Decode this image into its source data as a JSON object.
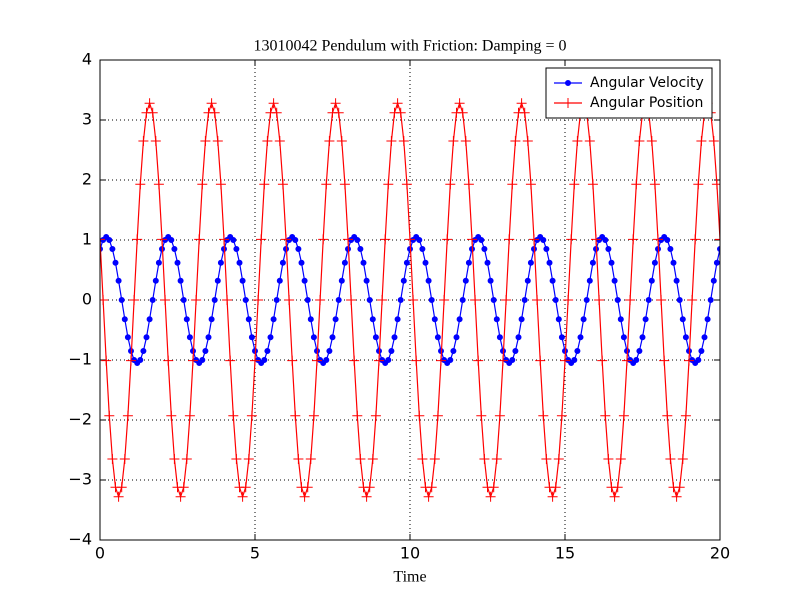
{
  "chart_data": {
    "type": "line",
    "title": "13010042 Pendulum with Friction: Damping = 0",
    "x_label": "Time",
    "xlim": [
      0,
      20
    ],
    "xticks": [
      0,
      5,
      10,
      15,
      20
    ],
    "ylim": [
      -4,
      4
    ],
    "yticks": [
      {
        "value": -4,
        "label": "−4"
      },
      {
        "value": -3,
        "label": "−3"
      },
      {
        "value": -2,
        "label": "−2"
      },
      {
        "value": -1,
        "label": "−1"
      },
      0,
      1,
      2,
      3,
      4
    ],
    "grid": true,
    "legend": "upper right",
    "x": [
      0,
      0.1,
      0.2,
      0.3,
      0.4,
      0.5,
      0.6,
      0.7,
      0.8,
      0.9,
      1,
      1.1,
      1.2,
      1.3,
      1.4,
      1.5,
      1.6,
      1.7,
      1.8,
      1.9,
      2,
      2.1,
      2.2,
      2.3,
      2.4,
      2.5,
      2.6,
      2.7,
      2.8,
      2.9,
      3,
      3.1,
      3.2,
      3.3,
      3.4,
      3.5,
      3.6,
      3.7,
      3.8,
      3.9,
      4,
      4.1,
      4.2,
      4.3,
      4.4,
      4.5,
      4.6,
      4.7,
      4.8,
      4.9,
      5,
      5.1,
      5.2,
      5.3,
      5.4,
      5.5,
      5.6,
      5.7,
      5.8,
      5.9,
      6,
      6.1,
      6.2,
      6.3,
      6.4,
      6.5,
      6.6,
      6.7,
      6.8,
      6.9,
      7,
      7.1,
      7.2,
      7.3,
      7.4,
      7.5,
      7.6,
      7.7,
      7.8,
      7.9,
      8,
      8.1,
      8.2,
      8.3,
      8.4,
      8.5,
      8.6,
      8.7,
      8.8,
      8.9,
      9,
      9.1,
      9.2,
      9.3,
      9.4,
      9.5,
      9.6,
      9.7,
      9.8,
      9.9,
      10,
      10.1,
      10.2,
      10.3,
      10.4,
      10.5,
      10.6,
      10.7,
      10.8,
      10.9,
      11,
      11.1,
      11.2,
      11.3,
      11.4,
      11.5,
      11.6,
      11.7,
      11.8,
      11.9,
      12,
      12.1,
      12.2,
      12.3,
      12.4,
      12.5,
      12.6,
      12.7,
      12.8,
      12.9,
      13,
      13.1,
      13.2,
      13.3,
      13.4,
      13.5,
      13.6,
      13.7,
      13.8,
      13.9,
      14,
      14.1,
      14.2,
      14.3,
      14.4,
      14.5,
      14.6,
      14.7,
      14.8,
      14.9,
      15,
      15.1,
      15.2,
      15.3,
      15.4,
      15.5,
      15.6,
      15.7,
      15.8,
      15.9,
      16,
      16.1,
      16.2,
      16.3,
      16.4,
      16.5,
      16.6,
      16.7,
      16.8,
      16.9,
      17,
      17.1,
      17.2,
      17.3,
      17.4,
      17.5,
      17.6,
      17.7,
      17.8,
      17.9,
      18,
      18.1,
      18.2,
      18.3,
      18.4,
      18.5,
      18.6,
      18.7,
      18.8,
      18.9,
      19,
      19.1,
      19.2,
      19.3,
      19.4,
      19.5,
      19.6,
      19.7,
      19.8,
      19.9,
      20
    ],
    "series": [
      {
        "name": "Angular Velocity",
        "color": "#0000ff",
        "marker": "dot",
        "values": [
          0.85,
          1.0,
          1.05,
          1.0,
          0.85,
          0.62,
          0.32,
          0,
          -0.32,
          -0.62,
          -0.85,
          -1.0,
          -1.05,
          -1.0,
          -0.85,
          -0.62,
          -0.32,
          0,
          0.32,
          0.62,
          0.85,
          1.0,
          1.05,
          1.0,
          0.85,
          0.62,
          0.32,
          0,
          -0.32,
          -0.62,
          -0.85,
          -1.0,
          -1.05,
          -1.0,
          -0.85,
          -0.62,
          -0.32,
          0,
          0.32,
          0.62,
          0.85,
          1.0,
          1.05,
          1.0,
          0.85,
          0.62,
          0.32,
          0,
          -0.32,
          -0.62,
          -0.85,
          -1.0,
          -1.05,
          -1.0,
          -0.85,
          -0.62,
          -0.32,
          0,
          0.32,
          0.62,
          0.85,
          1.0,
          1.05,
          1.0,
          0.85,
          0.62,
          0.32,
          0,
          -0.32,
          -0.62,
          -0.85,
          -1.0,
          -1.05,
          -1.0,
          -0.85,
          -0.62,
          -0.32,
          0,
          0.32,
          0.62,
          0.85,
          1.0,
          1.05,
          1.0,
          0.85,
          0.62,
          0.32,
          0,
          -0.32,
          -0.62,
          -0.85,
          -1.0,
          -1.05,
          -1.0,
          -0.85,
          -0.62,
          -0.32,
          0,
          0.32,
          0.62,
          0.85,
          1.0,
          1.05,
          1.0,
          0.85,
          0.62,
          0.32,
          0,
          -0.32,
          -0.62,
          -0.85,
          -1.0,
          -1.05,
          -1.0,
          -0.85,
          -0.62,
          -0.32,
          0,
          0.32,
          0.62,
          0.85,
          1.0,
          1.05,
          1.0,
          0.85,
          0.62,
          0.32,
          0,
          -0.32,
          -0.62,
          -0.85,
          -1.0,
          -1.05,
          -1.0,
          -0.85,
          -0.62,
          -0.32,
          0,
          0.32,
          0.62,
          0.85,
          1.0,
          1.05,
          1.0,
          0.85,
          0.62,
          0.32,
          0,
          -0.32,
          -0.62,
          -0.85,
          -1.0,
          -1.05,
          -1.0,
          -0.85,
          -0.62,
          -0.32,
          0,
          0.32,
          0.62,
          0.85,
          1.0,
          1.05,
          1.0,
          0.85,
          0.62,
          0.32,
          0,
          -0.32,
          -0.62,
          -0.85,
          -1.0,
          -1.05,
          -1.0,
          -0.85,
          -0.62,
          -0.32,
          0,
          0.32,
          0.62,
          0.85,
          1.0,
          1.05,
          1.0,
          0.85,
          0.62,
          0.32,
          0,
          -0.32,
          -0.62,
          -0.85,
          -1.0,
          -1.05,
          -1.0,
          -0.85,
          -0.62,
          -0.32,
          0,
          0.32,
          0.62,
          0.85
        ]
      },
      {
        "name": "Angular Position",
        "color": "#ff0000",
        "marker": "plus",
        "values": [
          1.01,
          0,
          -1.01,
          -1.93,
          -2.65,
          -3.12,
          -3.28,
          -3.12,
          -2.65,
          -1.93,
          -1.01,
          0,
          1.01,
          1.93,
          2.65,
          3.12,
          3.28,
          3.12,
          2.65,
          1.93,
          1.01,
          0,
          -1.01,
          -1.93,
          -2.65,
          -3.12,
          -3.28,
          -3.12,
          -2.65,
          -1.93,
          -1.01,
          0,
          1.01,
          1.93,
          2.65,
          3.12,
          3.28,
          3.12,
          2.65,
          1.93,
          1.01,
          0,
          -1.01,
          -1.93,
          -2.65,
          -3.12,
          -3.28,
          -3.12,
          -2.65,
          -1.93,
          -1.01,
          0,
          1.01,
          1.93,
          2.65,
          3.12,
          3.28,
          3.12,
          2.65,
          1.93,
          1.01,
          0,
          -1.01,
          -1.93,
          -2.65,
          -3.12,
          -3.28,
          -3.12,
          -2.65,
          -1.93,
          -1.01,
          0,
          1.01,
          1.93,
          2.65,
          3.12,
          3.28,
          3.12,
          2.65,
          1.93,
          1.01,
          0,
          -1.01,
          -1.93,
          -2.65,
          -3.12,
          -3.28,
          -3.12,
          -2.65,
          -1.93,
          -1.01,
          0,
          1.01,
          1.93,
          2.65,
          3.12,
          3.28,
          3.12,
          2.65,
          1.93,
          1.01,
          0,
          -1.01,
          -1.93,
          -2.65,
          -3.12,
          -3.28,
          -3.12,
          -2.65,
          -1.93,
          -1.01,
          0,
          1.01,
          1.93,
          2.65,
          3.12,
          3.28,
          3.12,
          2.65,
          1.93,
          1.01,
          0,
          -1.01,
          -1.93,
          -2.65,
          -3.12,
          -3.28,
          -3.12,
          -2.65,
          -1.93,
          -1.01,
          0,
          1.01,
          1.93,
          2.65,
          3.12,
          3.28,
          3.12,
          2.65,
          1.93,
          1.01,
          0,
          -1.01,
          -1.93,
          -2.65,
          -3.12,
          -3.28,
          -3.12,
          -2.65,
          -1.93,
          -1.01,
          0,
          1.01,
          1.93,
          2.65,
          3.12,
          3.28,
          3.12,
          2.65,
          1.93,
          1.01,
          0,
          -1.01,
          -1.93,
          -2.65,
          -3.12,
          -3.28,
          -3.12,
          -2.65,
          -1.93,
          -1.01,
          0,
          1.01,
          1.93,
          2.65,
          3.12,
          3.28,
          3.12,
          2.65,
          1.93,
          1.01,
          0,
          -1.01,
          -1.93,
          -2.65,
          -3.12,
          -3.28,
          -3.12,
          -2.65,
          -1.93,
          -1.01,
          0,
          1.01,
          1.93,
          2.65,
          3.12,
          3.28,
          3.12,
          2.65,
          1.93,
          1.01
        ]
      }
    ]
  }
}
